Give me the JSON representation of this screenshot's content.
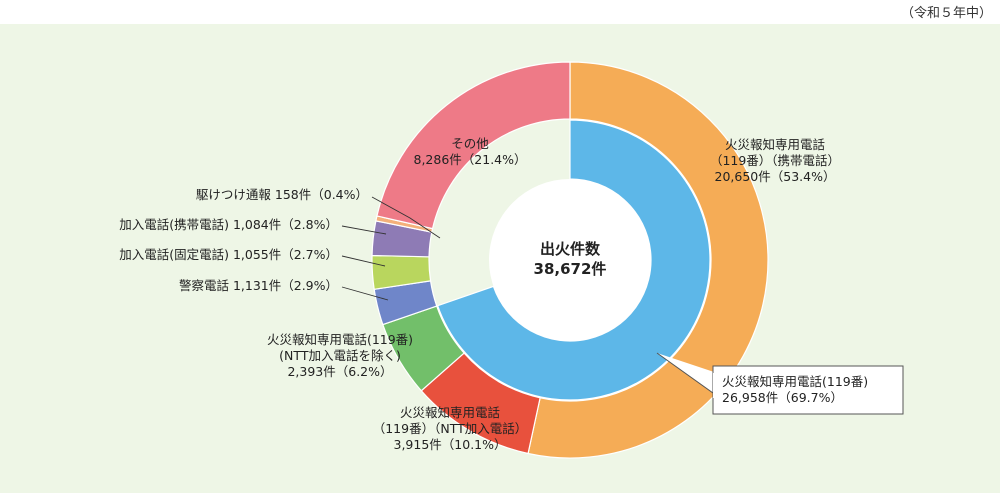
{
  "note": "（令和５年中）",
  "chart_data": {
    "type": "pie",
    "center_label": [
      "出火件数",
      "38,672件"
    ],
    "outer_ring": [
      {
        "name": "火災報知専用電話（119番）（携帯電話）",
        "value": 20650,
        "percent": 53.4,
        "color": "#f5ac56",
        "label": [
          "火災報知専用電話",
          "（119番）（携帯電話）",
          "20,650件（53.4%）"
        ]
      },
      {
        "name": "火災報知専用電話（119番）（NTT加入電話）",
        "value": 3915,
        "percent": 10.1,
        "color": "#e8513d",
        "label": [
          "火災報知専用電話",
          "（119番）（NTT加入電話）",
          "3,915件（10.1%）"
        ]
      },
      {
        "name": "火災報知専用電話(119番)(NTT加入電話を除く)",
        "value": 2393,
        "percent": 6.2,
        "color": "#72bf6a",
        "label": [
          "火災報知専用電話(119番)",
          "(NTT加入電話を除く)",
          "2,393件（6.2%）"
        ]
      },
      {
        "name": "警察電話",
        "value": 1131,
        "percent": 2.9,
        "color": "#6f86c9",
        "label": [
          "警察電話 1,131件（2.9%）"
        ]
      },
      {
        "name": "加入電話(固定電話)",
        "value": 1055,
        "percent": 2.7,
        "color": "#b9d65e",
        "label": [
          "加入電話(固定電話) 1,055件（2.7%）"
        ]
      },
      {
        "name": "加入電話(携帯電話)",
        "value": 1084,
        "percent": 2.8,
        "color": "#8e7bb5",
        "label": [
          "加入電話(携帯電話) 1,084件（2.8%）"
        ]
      },
      {
        "name": "駆けつけ通報",
        "value": 158,
        "percent": 0.4,
        "color": "#f4b07a",
        "label": [
          "駆けつけ通報 158件（0.4%）"
        ]
      },
      {
        "name": "その他",
        "value": 8286,
        "percent": 21.4,
        "color": "#ee7a87",
        "label": [
          "その他",
          "8,286件（21.4%）"
        ]
      }
    ],
    "inner_ring": [
      {
        "name": "火災報知専用電話(119番)",
        "value": 26958,
        "percent": 69.7,
        "color": "#5db7e8",
        "label": [
          "火災報知専用電話(119番)",
          "26,958件（69.7%）"
        ]
      }
    ]
  }
}
